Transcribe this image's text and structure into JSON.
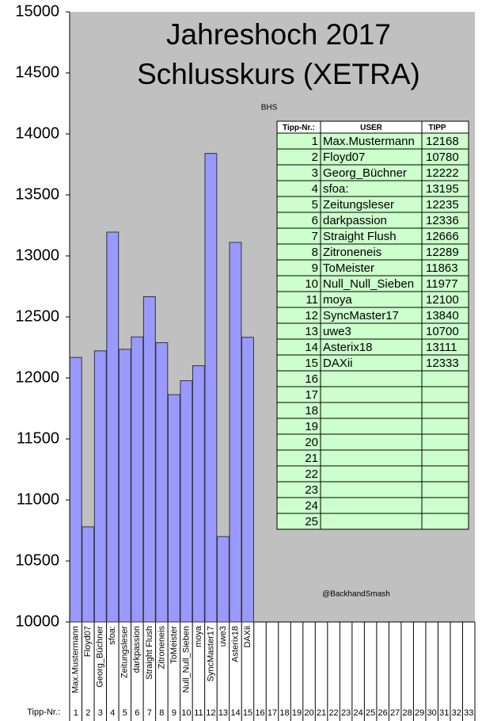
{
  "chart_data": {
    "type": "bar",
    "title": "Jahreshoch 2017",
    "subtitle": "Schlusskurs (XETRA)",
    "annotations": [
      "BHS",
      "@BackhandSmash"
    ],
    "xlabel": "Tipp-Nr.:",
    "categories": [
      1,
      2,
      3,
      4,
      5,
      6,
      7,
      8,
      9,
      10,
      11,
      12,
      13,
      14,
      15,
      16,
      17,
      18,
      19,
      20,
      21,
      22,
      23,
      24,
      25,
      26,
      27,
      28,
      29,
      30,
      31,
      32,
      33
    ],
    "names": [
      "Max.Mustermann",
      "Floyd07",
      "Georg_Büchner",
      "sfoa:",
      "Zeitungsleser",
      "darkpassion",
      "Straight Flush",
      "Zitroneneis",
      "ToMeister",
      "Null_Null_Sieben",
      "moya",
      "SyncMaster17",
      "uwe3",
      "Asterix18",
      "DAXii",
      null,
      null,
      null,
      null,
      null,
      null,
      null,
      null,
      null,
      null,
      null,
      null,
      null,
      null,
      null,
      null,
      null,
      null
    ],
    "values": [
      12168,
      10780,
      12222,
      13195,
      12235,
      12336,
      12666,
      12289,
      11863,
      11977,
      12100,
      13840,
      10700,
      13111,
      12333,
      null,
      null,
      null,
      null,
      null,
      null,
      null,
      null,
      null,
      null,
      null,
      null,
      null,
      null,
      null,
      null,
      null,
      null
    ],
    "color": "#9999ff",
    "ylim": [
      10000,
      15000
    ],
    "yticks": [
      10000,
      10500,
      11000,
      11500,
      12000,
      12500,
      13000,
      13500,
      14000,
      14500,
      15000
    ],
    "grid": false,
    "table": {
      "columns": [
        "Tipp-Nr.:",
        "USER",
        "TIPP"
      ],
      "rows": 25
    }
  }
}
